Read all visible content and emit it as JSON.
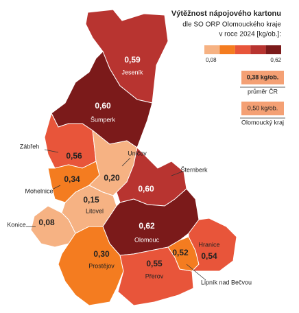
{
  "title": "Výtěžnost nápojového kartonu",
  "subtitle_lines": [
    "dle SO ORP Olomouckého kraje",
    "v roce 2024 [kg/ob.]:"
  ],
  "legend": {
    "colors": [
      "#f6b283",
      "#f47c20",
      "#e8553a",
      "#b83430",
      "#7b1a1a"
    ],
    "min": {
      "value": 0.08,
      "label": "0,08"
    },
    "max": {
      "value": 0.62,
      "label": "0,62"
    }
  },
  "references": [
    {
      "value": 0.38,
      "value_label": "0,38 kg/ob.",
      "name": "průměr ČR",
      "color": "#f4a074"
    },
    {
      "value": 0.5,
      "value_label": "0,50 kg/ob.",
      "name": "Olomoucký kraj",
      "color": "#f4a074"
    }
  ],
  "regions": [
    {
      "name": "Jeseník",
      "value": 0.59,
      "value_label": "0,59",
      "color": "#b83430"
    },
    {
      "name": "Šumperk",
      "value": 0.6,
      "value_label": "0,60",
      "color": "#7b1a1a"
    },
    {
      "name": "Zábřeh",
      "value": 0.56,
      "value_label": "0,56",
      "color": "#e8553a"
    },
    {
      "name": "Mohelnice",
      "value": 0.34,
      "value_label": "0,34",
      "color": "#f47c20"
    },
    {
      "name": "Uničov",
      "value": 0.2,
      "value_label": "0,20",
      "color": "#f6b283"
    },
    {
      "name": "Litovel",
      "value": 0.15,
      "value_label": "0,15",
      "color": "#f6b283"
    },
    {
      "name": "Konice",
      "value": 0.08,
      "value_label": "0,08",
      "color": "#f6b283"
    },
    {
      "name": "Šternberk",
      "value": 0.6,
      "value_label": "0,60",
      "color": "#b83430"
    },
    {
      "name": "Olomouc",
      "value": 0.62,
      "value_label": "0,62",
      "color": "#7b1a1a"
    },
    {
      "name": "Prostějov",
      "value": 0.3,
      "value_label": "0,30",
      "color": "#f47c20"
    },
    {
      "name": "Přerov",
      "value": 0.55,
      "value_label": "0,55",
      "color": "#e8553a"
    },
    {
      "name": "Lipník nad Bečvou",
      "value": 0.52,
      "value_label": "0,52",
      "color": "#f47c20"
    },
    {
      "name": "Hranice",
      "value": 0.54,
      "value_label": "0,54",
      "color": "#e8553a"
    }
  ]
}
